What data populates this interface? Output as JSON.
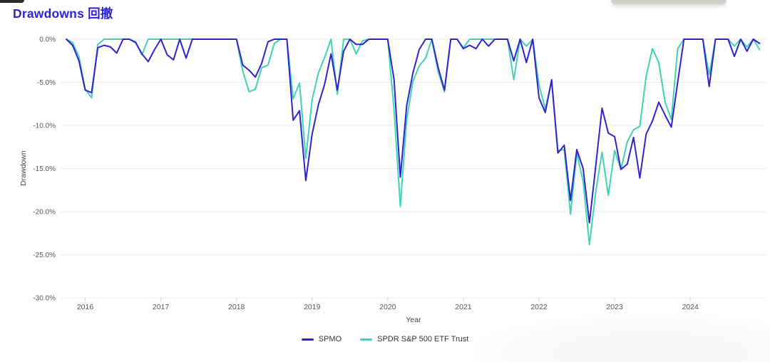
{
  "header": {
    "title": "Drawdowns 回撤"
  },
  "chart_data": {
    "type": "line",
    "title": "Drawdowns 回撤",
    "xlabel": "Year",
    "ylabel": "Drawdown",
    "x_start": "2015-10",
    "x_freq": "monthly",
    "x_tick_labels": [
      "2016",
      "2017",
      "2018",
      "2019",
      "2020",
      "2021",
      "2022",
      "2023",
      "2024"
    ],
    "y_tick_labels": [
      "0.0%",
      "-5.0%",
      "-10.0%",
      "-15.0%",
      "-20.0%",
      "-25.0%",
      "-30.0%"
    ],
    "ylim": [
      -30,
      0
    ],
    "value_unit": "percent",
    "grid": true,
    "legend_position": "bottom",
    "series": [
      {
        "name": "SPMO",
        "color": "#3222cc",
        "values": [
          0,
          -0.7,
          -2.5,
          -5.9,
          -6.2,
          -1.0,
          -0.7,
          -0.9,
          -1.6,
          0,
          0,
          -0.4,
          -1.7,
          -2.6,
          -1.2,
          0,
          -1.8,
          -2.4,
          0,
          -2.2,
          0,
          0,
          0,
          0,
          0,
          0,
          0,
          0,
          -3.0,
          -3.6,
          -4.4,
          -2.8,
          -0.3,
          0,
          0,
          0,
          -9.4,
          -8.3,
          -16.4,
          -11.0,
          -7.6,
          -5.2,
          -1.7,
          -5.9,
          -1.4,
          0,
          -0.6,
          -0.6,
          0,
          0,
          0,
          0,
          -4.7,
          -16.0,
          -7.7,
          -3.9,
          -1.2,
          0,
          0,
          -3.3,
          -5.9,
          0,
          0,
          -1.1,
          -0.7,
          -1.1,
          0,
          -0.8,
          0,
          0,
          0,
          -2.5,
          0,
          -2.7,
          0,
          -6.8,
          -8.5,
          -4.7,
          -13.2,
          -12.3,
          -18.7,
          -12.8,
          -15.0,
          -21.3,
          -14.7,
          -8.0,
          -10.9,
          -11.3,
          -15.1,
          -14.5,
          -11.4,
          -16.1,
          -11.0,
          -9.5,
          -7.3,
          -8.8,
          -10.2,
          -5.0,
          0,
          0,
          0,
          0,
          -5.5,
          0,
          0,
          0,
          -2.0,
          0,
          -1.4,
          0,
          -0.5
        ]
      },
      {
        "name": "SPDR S&P 500 ETF Trust",
        "color": "#3fd2b4",
        "values": [
          0,
          -0.4,
          -2.0,
          -5.8,
          -6.8,
          -0.6,
          0,
          0,
          0,
          0,
          0,
          -0.3,
          -1.8,
          0,
          0,
          0,
          0,
          0,
          0,
          0,
          0,
          0,
          0,
          0,
          0,
          0,
          0,
          0,
          -3.7,
          -6.1,
          -5.8,
          -3.3,
          -3.0,
          -0.5,
          0,
          0,
          -6.9,
          -5.1,
          -13.8,
          -7.0,
          -3.9,
          -2.1,
          0,
          -6.4,
          0,
          0,
          -1.7,
          -0.2,
          0,
          0,
          0,
          0,
          -8.2,
          -19.4,
          -9.3,
          -4.9,
          -3.1,
          -2.2,
          0,
          -3.8,
          -6.1,
          0,
          0,
          -1.0,
          0,
          0,
          0,
          0,
          0,
          0,
          0,
          -4.7,
          0,
          -0.8,
          0,
          -5.3,
          -8.1,
          -4.9,
          -12.9,
          -12.8,
          -20.3,
          -13.2,
          -16.5,
          -23.8,
          -17.7,
          -13.1,
          -18.1,
          -12.9,
          -15.1,
          -11.9,
          -10.5,
          -10.1,
          -4.3,
          -1.1,
          -2.7,
          -7.3,
          -9.3,
          -1.1,
          0,
          0,
          0,
          0,
          -4.1,
          0,
          0,
          0,
          -0.8,
          0,
          -0.9,
          0,
          -1.2
        ]
      }
    ]
  }
}
